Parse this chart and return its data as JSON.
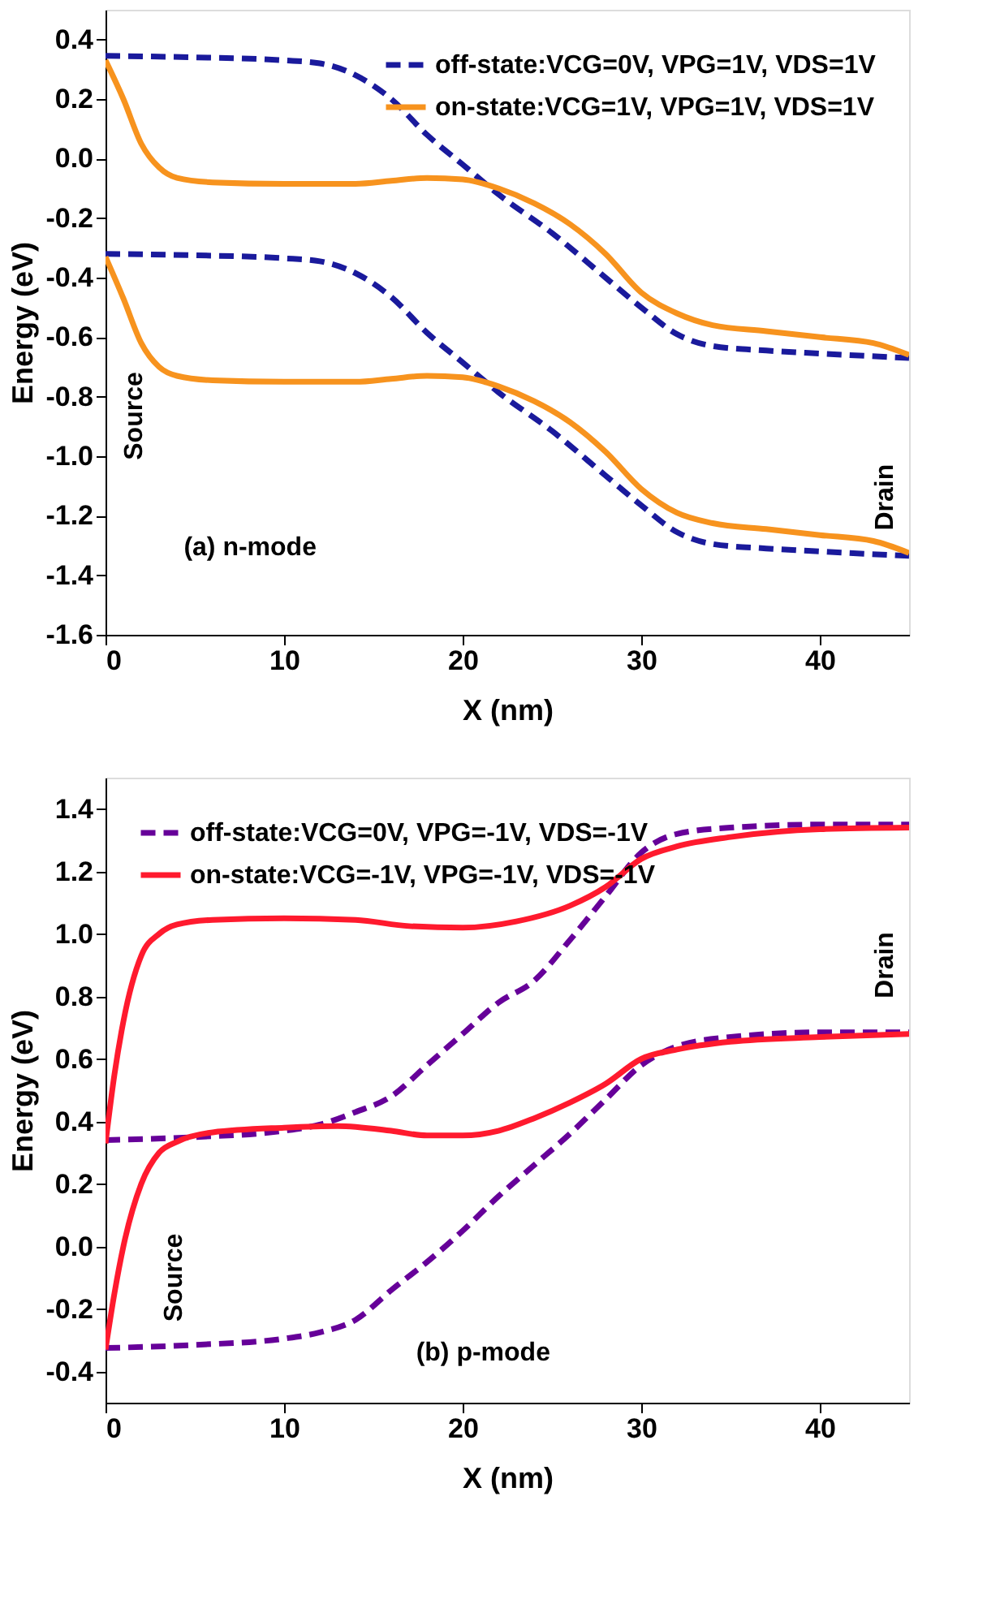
{
  "chart_data": [
    {
      "type": "line",
      "xlabel": "X (nm)",
      "ylabel": "Energy (eV)",
      "xlim": [
        0,
        45
      ],
      "xticks": [
        0,
        10,
        20,
        30,
        40
      ],
      "ylim": [
        -1.6,
        0.5
      ],
      "yticks": [
        -1.6,
        -1.4,
        -1.2,
        {
          "value": -1,
          "label": "-1.0"
        },
        -0.8,
        -0.6,
        -0.4,
        -0.2,
        {
          "value": 0,
          "label": "0.0"
        },
        0.2,
        0.4
      ],
      "legend": "top right",
      "grid": false,
      "marker": "none",
      "annotations": [
        "Source",
        "Drain",
        "(a) n-mode"
      ],
      "series": [
        {
          "name": "off-state:VCG=0V, VPG=1V, VDS=1V",
          "color": "#1a1a9c",
          "line_style": "dashed",
          "x": [
            0,
            5,
            10,
            12,
            14,
            16,
            18,
            20,
            22,
            25,
            28,
            30,
            32,
            34,
            37,
            40,
            45
          ],
          "values": [
            0.345,
            0.34,
            0.33,
            0.32,
            0.28,
            0.2,
            0.08,
            -0.02,
            -0.12,
            -0.25,
            -0.4,
            -0.5,
            -0.59,
            -0.63,
            -0.645,
            -0.655,
            -0.67
          ]
        },
        {
          "color": "#1a1a9c",
          "line_style": "dashed",
          "x": [
            0,
            5,
            10,
            12,
            14,
            16,
            18,
            20,
            22,
            25,
            28,
            30,
            32,
            34,
            37,
            40,
            45
          ],
          "values": [
            -0.32,
            -0.325,
            -0.335,
            -0.345,
            -0.385,
            -0.465,
            -0.585,
            -0.685,
            -0.785,
            -0.915,
            -1.065,
            -1.165,
            -1.255,
            -1.295,
            -1.31,
            -1.32,
            -1.335
          ]
        },
        {
          "name": "on-state:VCG=1V, VPG=1V, VDS=1V",
          "color": "#f7931e",
          "line_style": "solid",
          "x": [
            0,
            1,
            2,
            3,
            4,
            6,
            10,
            14,
            16,
            18,
            20,
            22,
            24,
            26,
            28,
            30,
            32,
            34,
            37,
            40,
            43,
            45
          ],
          "values": [
            0.33,
            0.2,
            0.05,
            -0.03,
            -0.065,
            -0.08,
            -0.085,
            -0.085,
            -0.075,
            -0.065,
            -0.07,
            -0.1,
            -0.15,
            -0.22,
            -0.32,
            -0.45,
            -0.52,
            -0.56,
            -0.58,
            -0.6,
            -0.62,
            -0.66
          ]
        },
        {
          "color": "#f7931e",
          "line_style": "solid",
          "x": [
            0,
            1,
            2,
            3,
            4,
            6,
            10,
            14,
            16,
            18,
            20,
            22,
            24,
            26,
            28,
            30,
            32,
            34,
            37,
            40,
            43,
            45
          ],
          "values": [
            -0.33,
            -0.47,
            -0.62,
            -0.7,
            -0.73,
            -0.745,
            -0.75,
            -0.75,
            -0.74,
            -0.73,
            -0.735,
            -0.765,
            -0.815,
            -0.885,
            -0.985,
            -1.11,
            -1.19,
            -1.225,
            -1.245,
            -1.265,
            -1.285,
            -1.325
          ]
        }
      ]
    },
    {
      "type": "line",
      "xlabel": "X (nm)",
      "ylabel": "Energy (eV)",
      "xlim": [
        0,
        45
      ],
      "xticks": [
        0,
        10,
        20,
        30,
        40
      ],
      "ylim": [
        -0.5,
        1.5
      ],
      "yticks": [
        -0.4,
        -0.2,
        {
          "value": 0,
          "label": "0.0"
        },
        0.2,
        0.4,
        0.6,
        0.8,
        {
          "value": 1,
          "label": "1.0"
        },
        1.2,
        1.4
      ],
      "legend": "top left",
      "grid": false,
      "marker": "none",
      "annotations": [
        "Source",
        "Drain",
        "(b) p-mode"
      ],
      "series": [
        {
          "name": "off-state:VCG=0V, VPG=-1V, VDS=-1V",
          "color": "#660099",
          "line_style": "dashed",
          "x": [
            0,
            5,
            10,
            12,
            14,
            16,
            18,
            20,
            22,
            24,
            26,
            28,
            30,
            32,
            35,
            40,
            45
          ],
          "values": [
            0.34,
            0.35,
            0.37,
            0.39,
            0.43,
            0.48,
            0.58,
            0.68,
            0.78,
            0.85,
            0.98,
            1.12,
            1.26,
            1.32,
            1.34,
            1.35,
            1.35
          ]
        },
        {
          "color": "#660099",
          "line_style": "dashed",
          "x": [
            0,
            5,
            10,
            12,
            14,
            16,
            18,
            20,
            22,
            24,
            26,
            28,
            30,
            32,
            35,
            40,
            45
          ],
          "values": [
            -0.325,
            -0.315,
            -0.295,
            -0.275,
            -0.235,
            -0.14,
            -0.05,
            0.05,
            0.16,
            0.26,
            0.36,
            0.47,
            0.58,
            0.64,
            0.67,
            0.685,
            0.685
          ]
        },
        {
          "name": "on-state:VCG=-1V, VPG=-1V, VDS=-1V",
          "color": "#ff1a2e",
          "line_style": "solid",
          "x": [
            0,
            0.5,
            1,
            2,
            3,
            4,
            6,
            10,
            14,
            17,
            20,
            23,
            26,
            28,
            30,
            32,
            35,
            40,
            45
          ],
          "values": [
            0.33,
            0.55,
            0.72,
            0.93,
            1.0,
            1.03,
            1.045,
            1.05,
            1.045,
            1.025,
            1.02,
            1.04,
            1.09,
            1.15,
            1.24,
            1.28,
            1.31,
            1.335,
            1.34
          ]
        },
        {
          "color": "#ff1a2e",
          "line_style": "solid",
          "x": [
            0,
            0.5,
            1,
            2,
            3,
            4,
            6,
            10,
            13,
            16,
            18,
            20,
            22,
            24,
            26,
            28,
            30,
            32,
            35,
            40,
            45
          ],
          "values": [
            -0.33,
            -0.15,
            0.0,
            0.2,
            0.3,
            0.335,
            0.365,
            0.38,
            0.385,
            0.37,
            0.355,
            0.355,
            0.37,
            0.41,
            0.46,
            0.52,
            0.6,
            0.63,
            0.655,
            0.67,
            0.68
          ]
        }
      ]
    }
  ]
}
